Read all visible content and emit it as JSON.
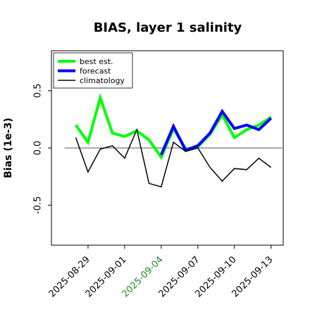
{
  "chart_data": {
    "type": "line",
    "title": "BIAS, layer 1 salinity",
    "xlabel": "",
    "ylabel": "Bias (1e-3)",
    "xlim": [
      "2025-08-26",
      "2025-09-14"
    ],
    "ylim": [
      -0.85,
      0.85
    ],
    "yticks": [
      -0.5,
      0.0,
      0.5
    ],
    "ytick_labels": [
      "-0.5",
      "0.0",
      "0.5"
    ],
    "xticks": [
      "2025-08-29",
      "2025-09-01",
      "2025-09-04",
      "2025-09-07",
      "2025-09-10",
      "2025-09-13"
    ],
    "xtick_labels": [
      "2025-08-29",
      "2025-09-01",
      "2025-09-04",
      "2025-09-07",
      "2025-09-10",
      "2025-09-13"
    ],
    "highlight_tick": "2025-09-04",
    "highlight_color": "#228B22",
    "grid": false,
    "zero_line": true,
    "legend_position": "upper-left",
    "x": [
      "2025-08-28",
      "2025-08-29",
      "2025-08-30",
      "2025-08-31",
      "2025-09-01",
      "2025-09-02",
      "2025-09-03",
      "2025-09-04",
      "2025-09-05",
      "2025-09-06",
      "2025-09-07",
      "2025-09-08",
      "2025-09-09",
      "2025-09-10",
      "2025-09-11",
      "2025-09-12",
      "2025-09-13"
    ],
    "series": [
      {
        "name": "best est.",
        "color": "#00ff00",
        "width": 4,
        "values": [
          0.2,
          0.05,
          0.44,
          0.13,
          0.1,
          0.15,
          0.07,
          -0.08,
          0.17,
          -0.01,
          0.01,
          0.12,
          0.29,
          0.09,
          0.16,
          0.2,
          0.27
        ]
      },
      {
        "name": "forecast",
        "color": "#0000ff",
        "width": 4,
        "values": [
          null,
          null,
          null,
          null,
          null,
          null,
          null,
          -0.06,
          0.19,
          -0.02,
          0.02,
          0.13,
          0.32,
          0.17,
          0.2,
          0.16,
          0.26
        ]
      },
      {
        "name": "climatology",
        "color": "#000000",
        "width": 1.5,
        "values": [
          0.09,
          -0.21,
          -0.01,
          0.02,
          -0.09,
          0.16,
          -0.31,
          -0.34,
          0.05,
          -0.03,
          0.0,
          -0.17,
          -0.29,
          -0.18,
          -0.19,
          -0.09,
          -0.17
        ]
      }
    ]
  }
}
